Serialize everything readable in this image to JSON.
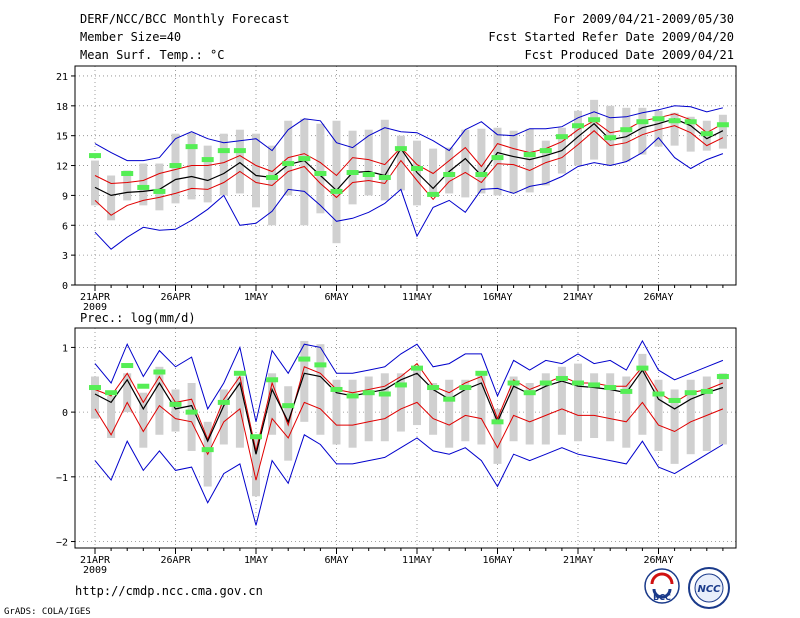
{
  "header": {
    "title": "DERF/NCC/BCC Monthly Forecast",
    "member_size": "Member Size=40",
    "variable": "Mean Surf. Temp.: °C",
    "period": "For 2009/04/21-2009/05/30",
    "refer_date": "Fcst Started Refer Date 2009/04/20",
    "produced_date": "Fcst Produced Date 2009/04/21"
  },
  "footer": {
    "url": "http://cmdp.ncc.cma.gov.cn",
    "grads": "GrADS: COLA/IGES",
    "logo_bcc": "BCC",
    "logo_ncc": "NCC"
  },
  "colors": {
    "box": "#d0d0d0",
    "envelope": "#0000cc",
    "spread": "#e00000",
    "mean": "#000000",
    "observed": "#55ee55"
  },
  "chart_data": [
    {
      "type": "line",
      "name": "temperature",
      "ylabel": "Mean Surf. Temp.: °C",
      "ylim": [
        0,
        22
      ],
      "yticks": [
        0,
        3,
        6,
        9,
        12,
        15,
        18,
        21
      ],
      "days": 40,
      "xticks": [
        {
          "day": 0,
          "label": "21APR",
          "sub": "2009"
        },
        {
          "day": 5,
          "label": "26APR"
        },
        {
          "day": 10,
          "label": "1MAY"
        },
        {
          "day": 15,
          "label": "6MAY"
        },
        {
          "day": 20,
          "label": "11MAY"
        },
        {
          "day": 25,
          "label": "16MAY"
        },
        {
          "day": 30,
          "label": "21MAY"
        },
        {
          "day": 35,
          "label": "26MAY"
        }
      ],
      "series": [
        {
          "name": "max",
          "values": [
            14.2,
            13.3,
            12.5,
            12.5,
            12.8,
            14.7,
            15.4,
            14.7,
            14.3,
            14.5,
            14.7,
            13.5,
            15.6,
            16.7,
            16.5,
            14.3,
            13.8,
            15.0,
            15.8,
            15.4,
            15.3,
            14.5,
            13.5,
            15.6,
            16.4,
            15.1,
            15.0,
            15.7,
            15.7,
            15.9,
            16.8,
            17.4,
            16.8,
            16.9,
            17.3,
            17.6,
            18.0,
            17.9,
            17.4,
            17.8
          ]
        },
        {
          "name": "upper",
          "values": [
            11.0,
            10.2,
            10.3,
            10.5,
            11.2,
            11.6,
            12.0,
            12.0,
            12.3,
            13.0,
            12.0,
            11.4,
            12.8,
            13.2,
            12.3,
            11.0,
            12.8,
            12.6,
            12.1,
            13.8,
            12.1,
            11.2,
            12.5,
            13.8,
            11.9,
            14.2,
            13.7,
            13.3,
            13.7,
            14.4,
            15.6,
            16.5,
            15.3,
            15.6,
            16.5,
            16.8,
            17.2,
            16.6,
            15.3,
            16.2
          ]
        },
        {
          "name": "mean",
          "values": [
            9.8,
            9.0,
            9.3,
            9.4,
            9.6,
            10.6,
            10.9,
            10.5,
            11.2,
            12.3,
            11.0,
            10.8,
            12.1,
            12.5,
            11.0,
            9.5,
            11.3,
            11.4,
            11.0,
            13.7,
            11.3,
            9.7,
            11.4,
            12.7,
            11.0,
            13.3,
            12.9,
            12.6,
            13.0,
            13.5,
            14.9,
            16.2,
            14.6,
            14.9,
            15.8,
            16.2,
            16.7,
            16.0,
            14.7,
            15.5
          ]
        },
        {
          "name": "lower",
          "values": [
            8.5,
            7.0,
            8.0,
            8.5,
            8.8,
            9.2,
            9.7,
            9.6,
            10.3,
            11.4,
            10.3,
            10.0,
            11.4,
            11.9,
            10.2,
            8.8,
            10.3,
            10.5,
            10.2,
            12.5,
            10.5,
            8.6,
            10.4,
            11.3,
            10.3,
            12.2,
            12.1,
            11.5,
            12.3,
            12.8,
            14.1,
            15.5,
            14.0,
            14.3,
            15.1,
            15.6,
            16.0,
            15.3,
            14.0,
            14.8
          ]
        },
        {
          "name": "min",
          "values": [
            5.3,
            3.6,
            4.8,
            5.8,
            5.5,
            5.6,
            6.5,
            7.6,
            9.0,
            6.0,
            6.2,
            7.4,
            9.6,
            9.4,
            8.0,
            6.4,
            6.7,
            7.3,
            8.2,
            9.6,
            4.9,
            7.8,
            8.5,
            7.3,
            9.6,
            9.7,
            9.2,
            9.9,
            10.2,
            10.9,
            11.9,
            12.3,
            12.0,
            12.4,
            13.3,
            14.8,
            12.8,
            11.7,
            12.6,
            13.2
          ]
        },
        {
          "name": "box_high",
          "values": [
            12.5,
            11.0,
            11.5,
            12.2,
            12.2,
            15.2,
            15.3,
            14.0,
            15.2,
            15.6,
            15.2,
            14.0,
            16.5,
            16.7,
            16.2,
            16.5,
            15.5,
            15.6,
            16.6,
            15.0,
            14.5,
            13.7,
            13.8,
            15.6,
            15.7,
            15.8,
            15.5,
            15.7,
            14.5,
            15.8,
            17.5,
            18.6,
            18.0,
            17.8,
            17.8,
            17.5,
            17.3,
            16.9,
            16.5,
            17.1
          ]
        },
        {
          "name": "box_low",
          "values": [
            8.0,
            6.5,
            8.5,
            8.0,
            7.5,
            8.2,
            8.6,
            8.3,
            9.0,
            9.2,
            7.8,
            6.0,
            9.0,
            6.0,
            7.2,
            4.2,
            8.1,
            9.0,
            8.5,
            9.5,
            8.0,
            9.0,
            9.2,
            8.8,
            9.2,
            9.0,
            9.2,
            9.3,
            10.0,
            11.2,
            12.0,
            12.6,
            12.0,
            12.4,
            13.1,
            13.9,
            14.0,
            13.4,
            13.5,
            13.7
          ]
        },
        {
          "name": "observed",
          "values": [
            13.0,
            null,
            11.2,
            9.8,
            9.4,
            12.0,
            13.9,
            12.6,
            13.5,
            13.5,
            null,
            10.8,
            12.2,
            12.7,
            11.2,
            9.4,
            11.3,
            11.1,
            10.8,
            13.7,
            11.7,
            9.1,
            11.1,
            null,
            11.1,
            12.8,
            null,
            13.1,
            13.5,
            14.9,
            16.0,
            16.6,
            14.8,
            15.6,
            16.4,
            16.7,
            16.5,
            16.4,
            15.2,
            16.1
          ]
        }
      ]
    },
    {
      "type": "line",
      "name": "precipitation",
      "ylabel": "Prec.: log(mm/d)",
      "ylim": [
        -2.1,
        1.3
      ],
      "yticks": [
        -2,
        -1,
        0,
        1
      ],
      "days": 40,
      "xticks": [
        {
          "day": 0,
          "label": "21APR",
          "sub": "2009"
        },
        {
          "day": 5,
          "label": "26APR"
        },
        {
          "day": 10,
          "label": "1MAY"
        },
        {
          "day": 15,
          "label": "6MAY"
        },
        {
          "day": 20,
          "label": "11MAY"
        },
        {
          "day": 25,
          "label": "16MAY"
        },
        {
          "day": 30,
          "label": "21MAY"
        },
        {
          "day": 35,
          "label": "26MAY"
        }
      ],
      "series": [
        {
          "name": "max",
          "values": [
            0.75,
            0.45,
            1.05,
            0.55,
            0.95,
            0.7,
            0.85,
            0.05,
            0.45,
            1.0,
            -0.15,
            0.95,
            0.6,
            1.05,
            1.0,
            0.6,
            0.6,
            0.65,
            0.7,
            0.9,
            1.05,
            0.7,
            0.75,
            0.9,
            0.9,
            0.25,
            0.8,
            0.65,
            0.8,
            0.75,
            0.9,
            0.75,
            0.8,
            0.65,
            1.1,
            0.65,
            0.5,
            0.6,
            0.7,
            0.8
          ]
        },
        {
          "name": "upper",
          "values": [
            0.35,
            0.25,
            0.6,
            0.15,
            0.55,
            0.15,
            0.2,
            -0.42,
            0.2,
            0.55,
            -0.6,
            0.45,
            -0.2,
            0.7,
            0.6,
            0.35,
            0.3,
            0.35,
            0.4,
            0.55,
            0.75,
            0.4,
            0.3,
            0.45,
            0.55,
            -0.1,
            0.5,
            0.35,
            0.45,
            0.55,
            0.45,
            0.45,
            0.4,
            0.4,
            0.7,
            0.3,
            0.15,
            0.3,
            0.35,
            0.45
          ]
        },
        {
          "name": "mean",
          "values": [
            0.28,
            0.15,
            0.5,
            0.05,
            0.45,
            0.05,
            0.1,
            -0.45,
            0.1,
            0.45,
            -0.65,
            0.35,
            -0.15,
            0.6,
            0.55,
            0.3,
            0.25,
            0.3,
            0.35,
            0.5,
            0.6,
            0.35,
            0.2,
            0.35,
            0.45,
            -0.15,
            0.4,
            0.28,
            0.4,
            0.48,
            0.4,
            0.38,
            0.35,
            0.3,
            0.65,
            0.2,
            0.05,
            0.2,
            0.3,
            0.38
          ]
        },
        {
          "name": "lower",
          "values": [
            0.05,
            -0.35,
            0.15,
            -0.3,
            0.1,
            -0.1,
            -0.15,
            -0.65,
            -0.15,
            0.05,
            -1.05,
            -0.1,
            -0.4,
            0.15,
            0.05,
            -0.2,
            -0.2,
            -0.15,
            -0.1,
            0.05,
            0.15,
            -0.1,
            -0.2,
            -0.05,
            -0.1,
            -0.55,
            -0.05,
            -0.15,
            -0.05,
            0.05,
            -0.05,
            -0.05,
            -0.1,
            -0.15,
            0.15,
            -0.2,
            -0.3,
            -0.15,
            -0.05,
            0.05
          ]
        },
        {
          "name": "min",
          "values": [
            -0.75,
            -1.05,
            -0.45,
            -0.9,
            -0.6,
            -0.9,
            -0.85,
            -1.4,
            -0.95,
            -0.8,
            -1.75,
            -0.75,
            -1.1,
            -0.35,
            -0.5,
            -0.8,
            -0.8,
            -0.75,
            -0.7,
            -0.55,
            -0.4,
            -0.6,
            -0.65,
            -0.55,
            -0.75,
            -1.15,
            -0.65,
            -0.75,
            -0.65,
            -0.55,
            -0.65,
            -0.7,
            -0.75,
            -0.8,
            -0.45,
            -0.85,
            -0.95,
            -0.8,
            -0.65,
            -0.5
          ]
        },
        {
          "name": "box_high",
          "values": [
            0.55,
            0.25,
            0.6,
            0.3,
            0.7,
            0.35,
            0.45,
            -0.15,
            0.35,
            0.55,
            -0.35,
            0.6,
            0.4,
            1.1,
            1.05,
            0.5,
            0.5,
            0.55,
            0.6,
            0.6,
            0.7,
            0.45,
            0.5,
            0.5,
            0.6,
            0.05,
            0.55,
            0.45,
            0.6,
            0.7,
            0.75,
            0.6,
            0.6,
            0.55,
            0.9,
            0.5,
            0.35,
            0.5,
            0.55,
            0.6
          ]
        },
        {
          "name": "box_low",
          "values": [
            -0.1,
            -0.4,
            0.0,
            -0.55,
            -0.35,
            -0.3,
            -0.6,
            -1.15,
            -0.5,
            -0.55,
            -1.3,
            -0.35,
            -0.75,
            -0.15,
            -0.35,
            -0.5,
            -0.55,
            -0.45,
            -0.45,
            -0.3,
            -0.2,
            -0.35,
            -0.55,
            -0.45,
            -0.5,
            -0.8,
            -0.45,
            -0.5,
            -0.5,
            -0.35,
            -0.45,
            -0.4,
            -0.45,
            -0.55,
            -0.35,
            -0.6,
            -0.8,
            -0.65,
            -0.6,
            -0.5
          ]
        },
        {
          "name": "observed",
          "values": [
            0.38,
            0.3,
            0.72,
            0.4,
            0.62,
            0.12,
            0.0,
            -0.58,
            0.15,
            0.6,
            -0.38,
            0.5,
            0.1,
            0.82,
            0.73,
            0.35,
            0.25,
            0.3,
            0.28,
            0.42,
            0.68,
            0.38,
            0.2,
            0.38,
            0.6,
            -0.15,
            0.45,
            0.3,
            0.45,
            0.52,
            0.45,
            0.42,
            0.38,
            0.32,
            0.68,
            0.28,
            0.18,
            0.3,
            0.32,
            0.55
          ]
        }
      ]
    }
  ]
}
